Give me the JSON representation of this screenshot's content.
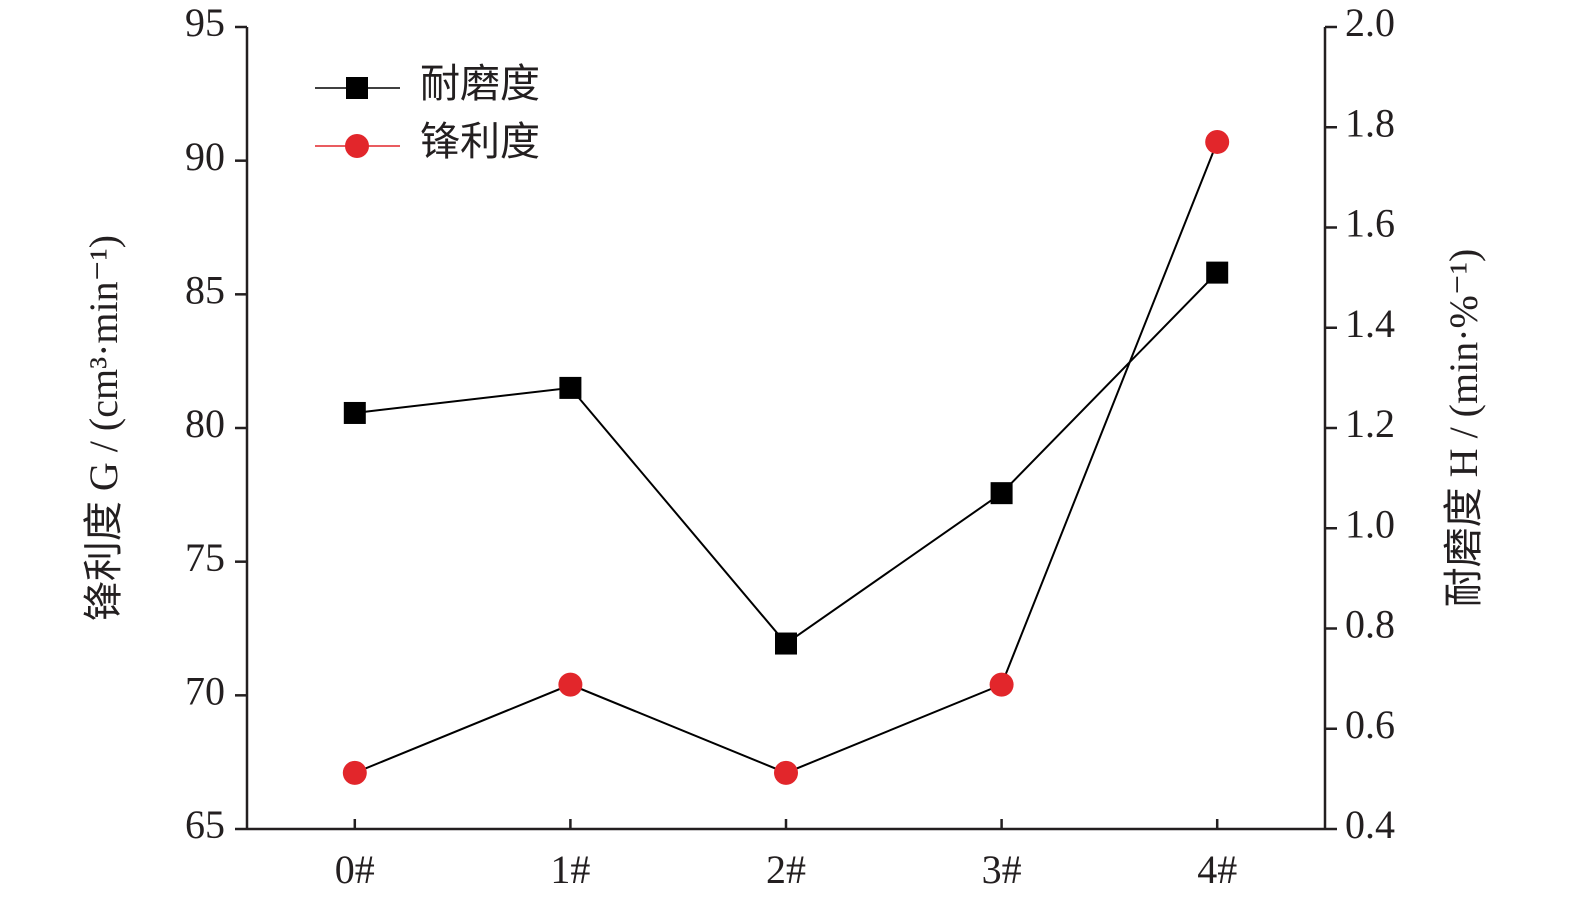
{
  "chart_data": {
    "type": "line",
    "categories": [
      "0#",
      "1#",
      "2#",
      "3#",
      "4#"
    ],
    "series": [
      {
        "name": "耐磨度",
        "color": "#000000",
        "marker": "square",
        "axis": "y2",
        "values": [
          1.23,
          1.28,
          0.77,
          1.07,
          1.51
        ]
      },
      {
        "name": "锋利度",
        "color": "#e2262b",
        "marker": "circle",
        "values": [
          67.1,
          70.4,
          67.1,
          70.4,
          90.7
        ]
      }
    ],
    "ylabel": "锋利度 G / (cm³·min⁻¹)",
    "y2label": "耐磨度 H / (min·%⁻¹)",
    "ylim": [
      65,
      95
    ],
    "yticks": [
      65,
      70,
      75,
      80,
      85,
      90,
      95
    ],
    "y2lim": [
      0.4,
      2.0
    ],
    "y2ticks": [
      0.4,
      0.6,
      0.8,
      {
        "value": 1.0,
        "label": "1.0"
      },
      1.2,
      1.4,
      1.6,
      1.8,
      {
        "value": 2.0,
        "label": "2.0"
      }
    ],
    "legend": "upper left",
    "line_color": "#000000"
  }
}
